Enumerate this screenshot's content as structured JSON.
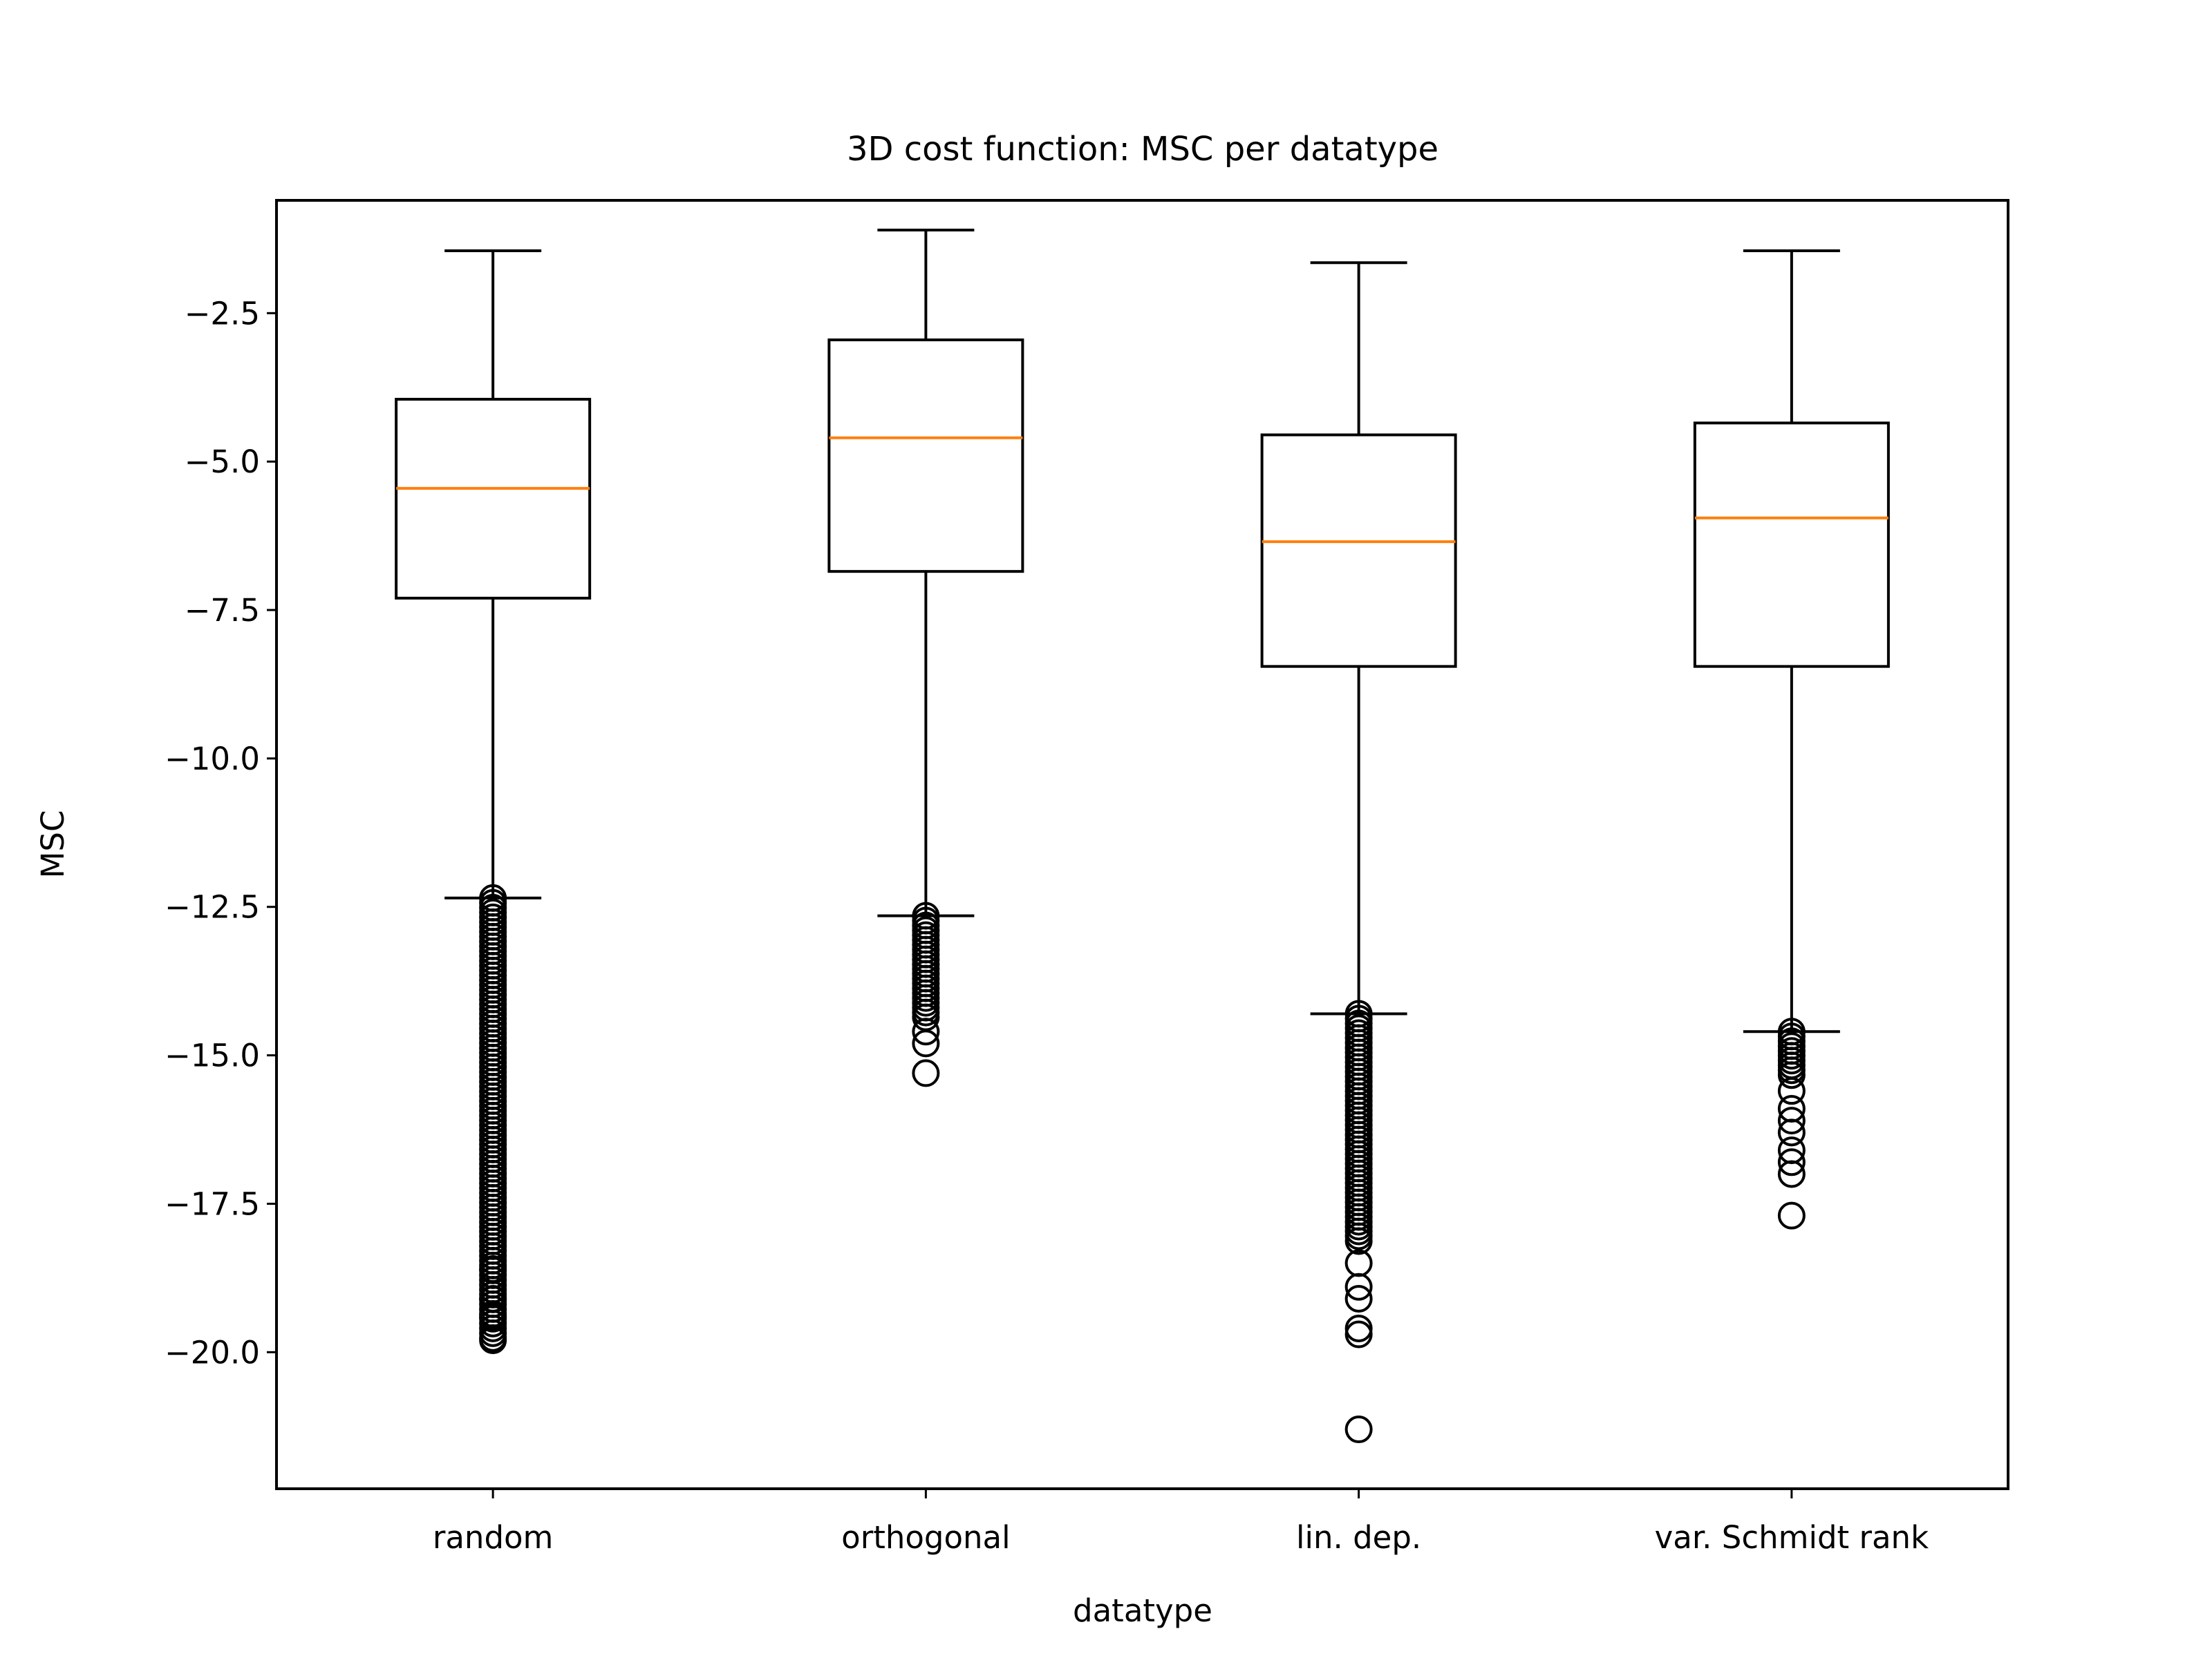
{
  "chart_data": {
    "type": "box",
    "title": "3D cost function: MSC per datatype",
    "xlabel": "datatype",
    "ylabel": "MSC",
    "ylim": [
      -22.3,
      -0.6
    ],
    "yticks": [
      -2.5,
      -5.0,
      -7.5,
      -10.0,
      -12.5,
      -15.0,
      -17.5,
      -20.0
    ],
    "ytick_labels": [
      "−2.5",
      "−5.0",
      "−7.5",
      "−10.0",
      "−12.5",
      "−15.0",
      "−17.5",
      "−20.0"
    ],
    "grid": false,
    "legend": false,
    "categories": [
      "random",
      "orthogonal",
      "lin. dep.",
      "var. Schmidt rank"
    ],
    "boxes": [
      {
        "whisker_high": -1.45,
        "q3": -3.95,
        "median": -5.45,
        "q1": -7.3,
        "whisker_low": -12.35,
        "flier_range": [
          -19.8,
          -12.35
        ],
        "fliers_sparse": [
          -18.6,
          -19.1,
          -19.4,
          -19.8
        ]
      },
      {
        "whisker_high": -1.1,
        "q3": -2.95,
        "median": -4.6,
        "q1": -6.85,
        "whisker_low": -12.65,
        "flier_range": [
          -14.4,
          -12.65
        ],
        "fliers_sparse": [
          -14.6,
          -14.8,
          -15.3
        ]
      },
      {
        "whisker_high": -1.65,
        "q3": -4.55,
        "median": -6.35,
        "q1": -8.45,
        "whisker_low": -14.3,
        "flier_range": [
          -18.2,
          -14.3
        ],
        "fliers_sparse": [
          -18.5,
          -18.9,
          -19.1,
          -19.6,
          -19.7,
          -21.3
        ]
      },
      {
        "whisker_high": -1.45,
        "q3": -4.35,
        "median": -5.95,
        "q1": -8.45,
        "whisker_low": -14.6,
        "flier_range": [
          -15.4,
          -14.6
        ],
        "fliers_sparse": [
          -15.6,
          -15.9,
          -16.1,
          -16.3,
          -16.6,
          -16.8,
          -17.0,
          -17.7
        ]
      }
    ],
    "colors": {
      "box": "#000000",
      "median": "#ff7f0e"
    }
  }
}
